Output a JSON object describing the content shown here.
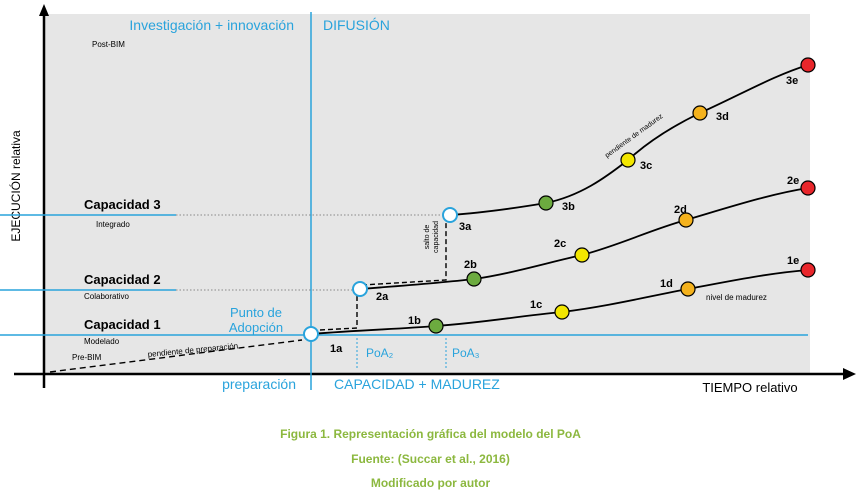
{
  "axes": {
    "y_label": "EJECUCIÓN relativa",
    "x_label": "TIEMPO relativo"
  },
  "phases": {
    "top_left": "Investigación + innovación",
    "top_right": "DIFUSIÓN",
    "bottom_left": "preparación",
    "bottom_right": "CAPACIDAD + MADUREZ"
  },
  "zones": {
    "top": "Post-BIM",
    "bottom": "Pre-BIM"
  },
  "capacities": [
    {
      "title": "Capacidad 1",
      "subtitle": "Modelado"
    },
    {
      "title": "Capacidad 2",
      "subtitle": "Colaborativo"
    },
    {
      "title": "Capacidad 3",
      "subtitle": "Integrado"
    }
  ],
  "annotations": {
    "adoption_point": [
      "Punto de",
      "Adopción"
    ],
    "prep_slope": "pendiente de preparación",
    "capability_jump": [
      "salto de",
      "capacidad"
    ],
    "maturity_slope": "pendiente de madurez",
    "maturity_level": "nivel de madurez",
    "poa2": "PoA₂",
    "poa3": "PoA₃"
  },
  "points": [
    {
      "label": "1a",
      "state": "open"
    },
    {
      "label": "1b",
      "state": "green"
    },
    {
      "label": "1c",
      "state": "yellow"
    },
    {
      "label": "1d",
      "state": "orange"
    },
    {
      "label": "1e",
      "state": "red"
    },
    {
      "label": "2a",
      "state": "open"
    },
    {
      "label": "2b",
      "state": "green"
    },
    {
      "label": "2c",
      "state": "yellow"
    },
    {
      "label": "2d",
      "state": "orange"
    },
    {
      "label": "2e",
      "state": "red"
    },
    {
      "label": "3a",
      "state": "open"
    },
    {
      "label": "3b",
      "state": "green"
    },
    {
      "label": "3c",
      "state": "yellow"
    },
    {
      "label": "3d",
      "state": "orange"
    },
    {
      "label": "3e",
      "state": "red"
    }
  ],
  "colors": {
    "blue": "#29a3dc",
    "green": "#6cab3f",
    "yellow": "#f2e600",
    "orange": "#f4b21d",
    "red": "#e8262b",
    "panel": "#e6e6e6",
    "caption": "#8cb83f"
  },
  "caption": {
    "line1": "Figura 1. Representación gráfica del modelo del PoA",
    "line2": "Fuente: (Succar et al., 2016)",
    "line3": "Modificado por autor"
  }
}
